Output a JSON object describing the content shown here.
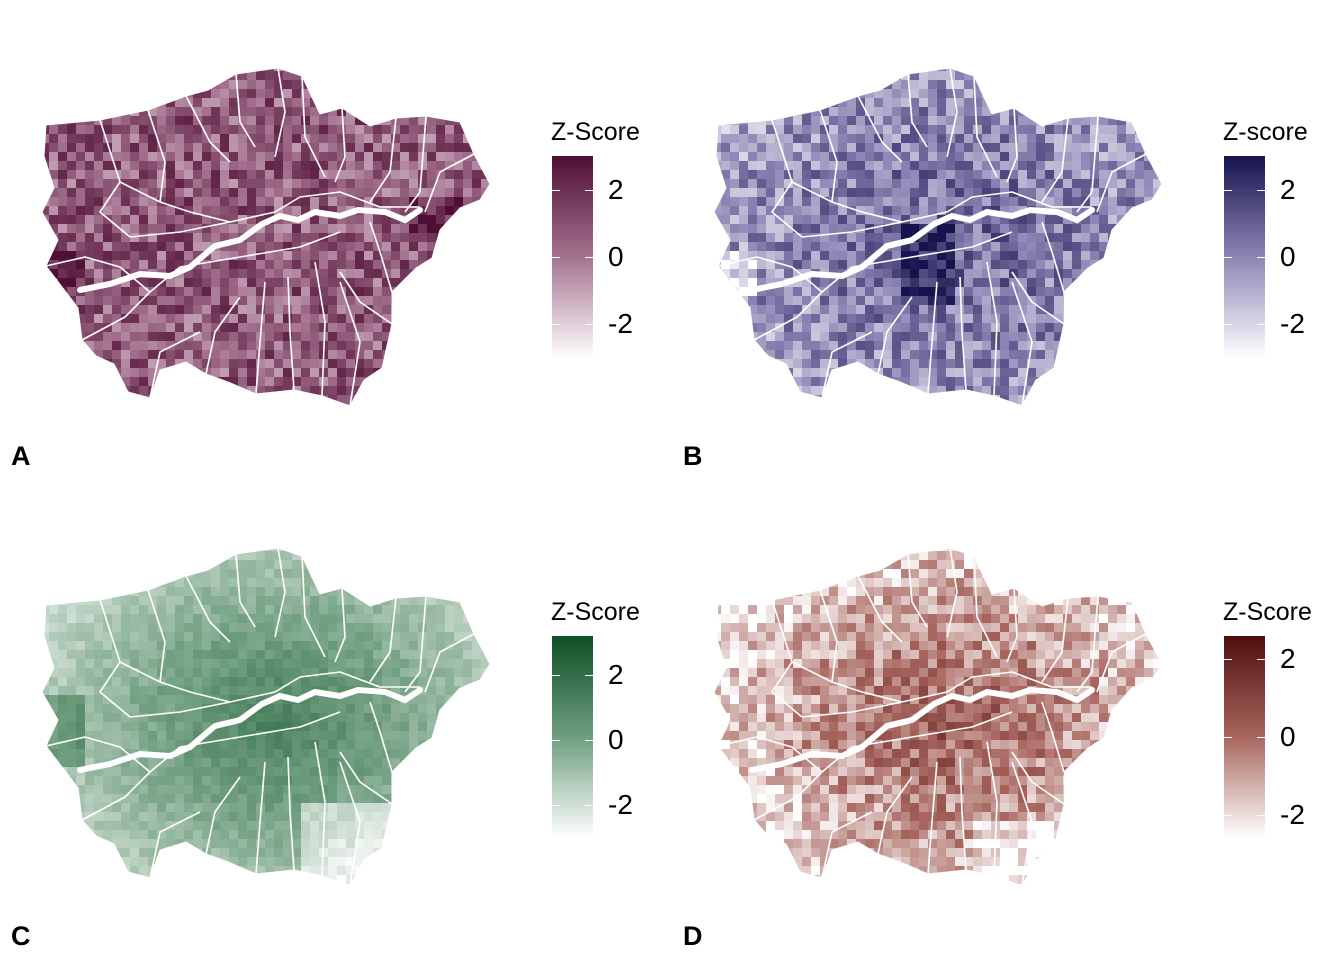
{
  "panels": [
    {
      "label": "A",
      "legend_title": "Z-Score",
      "colors": {
        "low": "#ffffff",
        "mid": "#a4728f",
        "high": "#4f0f35"
      },
      "scale_range": [
        -3,
        3
      ],
      "ticks": [
        {
          "value": 2,
          "label": "2"
        },
        {
          "value": 0,
          "label": "0"
        },
        {
          "value": -2,
          "label": "-2"
        }
      ]
    },
    {
      "label": "B",
      "legend_title": "Z-score",
      "colors": {
        "low": "#ffffff",
        "mid": "#8d85b5",
        "high": "#16134d"
      },
      "scale_range": [
        -3,
        3
      ],
      "ticks": [
        {
          "value": 2,
          "label": "2"
        },
        {
          "value": 0,
          "label": "0"
        },
        {
          "value": -2,
          "label": "-2"
        }
      ]
    },
    {
      "label": "C",
      "legend_title": "Z-Score",
      "colors": {
        "low": "#ffffff",
        "mid": "#6f9e7f",
        "high": "#0d4f27"
      },
      "scale_range": [
        -3,
        3.2
      ],
      "ticks": [
        {
          "value": 2,
          "label": "2"
        },
        {
          "value": 0,
          "label": "0"
        },
        {
          "value": -2,
          "label": "-2"
        }
      ]
    },
    {
      "label": "D",
      "legend_title": "Z-Score",
      "colors": {
        "low": "#ffffff",
        "mid": "#a8665f",
        "high": "#4e0e0c"
      },
      "scale_range": [
        -2.6,
        2.6
      ],
      "ticks": [
        {
          "value": 2,
          "label": "2"
        },
        {
          "value": 0,
          "label": "0"
        },
        {
          "value": -2,
          "label": "-2"
        }
      ]
    }
  ]
}
